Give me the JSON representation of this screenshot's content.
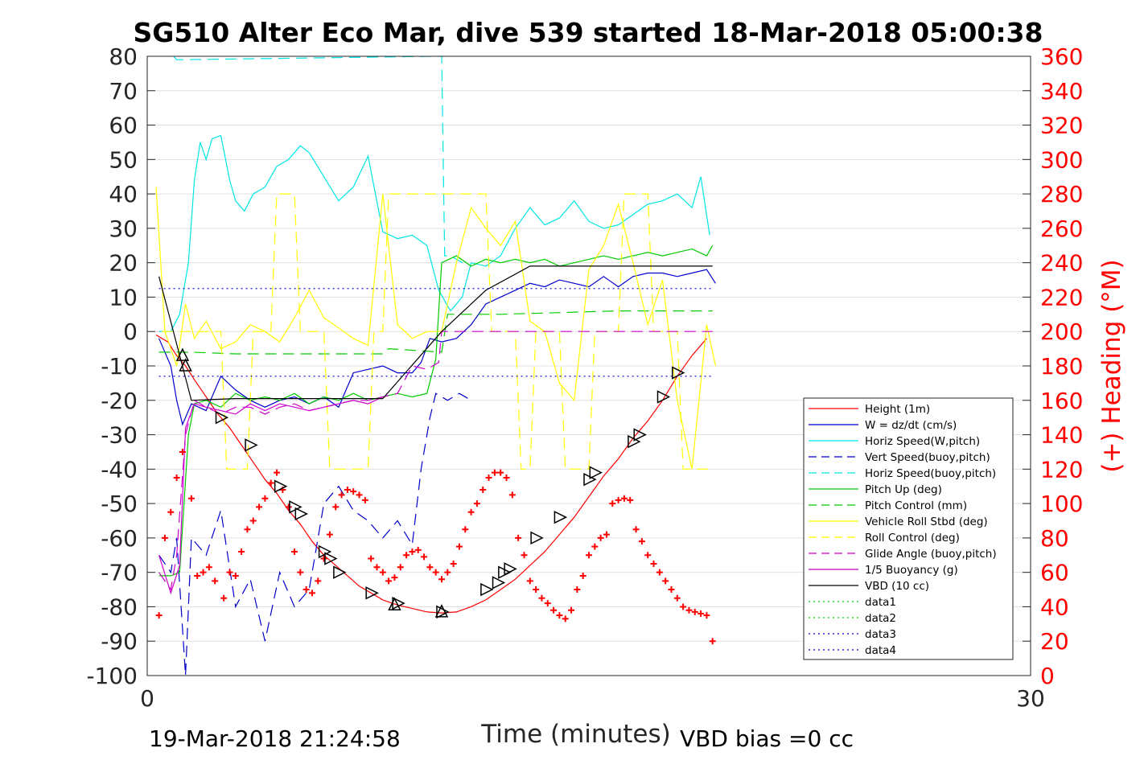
{
  "chart_data": {
    "type": "line",
    "title": "SG510 Alter Eco Mar, dive 539 started 18-Mar-2018 05:00:38",
    "xlabel": "Time (minutes)",
    "ylabel": "",
    "y2label": "(+) Heading (°M)",
    "xlim": [
      0,
      30
    ],
    "ylim": [
      -100,
      80
    ],
    "y2lim": [
      0,
      360
    ],
    "x_ticks": [
      "0",
      "30"
    ],
    "y_ticks": [
      "80",
      "70",
      "60",
      "50",
      "40",
      "30",
      "20",
      "10",
      "0",
      "-10",
      "-20",
      "-30",
      "-40",
      "-50",
      "-60",
      "-70",
      "-80",
      "-90",
      "-100"
    ],
    "y2_ticks": [
      "360",
      "340",
      "320",
      "300",
      "280",
      "260",
      "240",
      "220",
      "200",
      "180",
      "160",
      "140",
      "120",
      "100",
      "80",
      "60",
      "40",
      "20",
      "0"
    ],
    "grid": true,
    "legend_position": "bottom-right",
    "footer_left": "19-Mar-2018 21:24:58",
    "footer_right": "VBD bias =0 cc",
    "series": [
      {
        "name": "Height (1m)",
        "color": "#ff0000",
        "style": "solid",
        "axis": "left",
        "x": [
          0.3,
          0.7,
          1.0,
          1.3,
          1.6,
          2.0,
          2.4,
          2.8,
          3.2,
          3.6,
          4.0,
          4.4,
          4.8,
          5.2,
          5.6,
          6.0,
          6.4,
          6.8,
          7.2,
          7.6,
          8.0,
          8.5,
          9.0,
          9.5,
          10.0,
          10.5,
          11.0,
          11.5,
          12.0,
          12.5,
          13.0,
          13.5,
          14.0,
          14.5,
          15.0,
          15.5,
          16.0,
          16.5,
          17.0,
          17.5,
          18.0,
          18.5,
          19.0
        ],
        "y": [
          -1,
          -3,
          -7,
          -10,
          -14,
          -19,
          -24,
          -28,
          -33,
          -38,
          -43,
          -47,
          -52,
          -56,
          -61,
          -65,
          -68,
          -71,
          -74,
          -76,
          -78,
          -79.5,
          -80.5,
          -81.5,
          -81.8,
          -81.5,
          -80,
          -78,
          -75,
          -72,
          -68,
          -64,
          -59,
          -54,
          -48,
          -42,
          -37,
          -31,
          -26,
          -20,
          -13,
          -7,
          -2
        ]
      },
      {
        "name": "W = dz/dt (cm/s)",
        "color": "#0000cc",
        "style": "solid",
        "axis": "left",
        "x": [
          0.4,
          0.8,
          1.0,
          1.2,
          1.5,
          2.0,
          2.5,
          3.0,
          3.5,
          4.0,
          4.5,
          5.0,
          5.5,
          6.0,
          6.5,
          7.0,
          7.5,
          8.0,
          8.5,
          9.0,
          9.3,
          9.6,
          10.0,
          10.5,
          11.0,
          11.5,
          12.0,
          12.5,
          13.0,
          13.5,
          14.0,
          14.5,
          15.0,
          15.5,
          16.0,
          16.5,
          17.0,
          17.5,
          18.0,
          18.5,
          19.0,
          19.3
        ],
        "y": [
          -2,
          -10,
          -20,
          -27,
          -21,
          -23,
          -13,
          -17,
          -20,
          -22,
          -20,
          -19,
          -21,
          -19,
          -22,
          -12,
          -11,
          -10,
          -12,
          -12,
          -9,
          -2,
          -3,
          -2,
          2,
          8,
          10,
          12,
          14,
          13,
          15,
          14,
          13,
          16,
          13,
          16,
          17,
          17,
          16,
          17,
          18,
          14
        ]
      },
      {
        "name": "Horiz Speed(W,pitch)",
        "color": "#00e5e5",
        "style": "solid",
        "axis": "left",
        "x": [
          0.4,
          0.8,
          1.1,
          1.4,
          1.6,
          1.8,
          2.0,
          2.2,
          2.5,
          2.8,
          3.0,
          3.3,
          3.6,
          4.0,
          4.4,
          4.8,
          5.2,
          5.5,
          6.0,
          6.5,
          7.0,
          7.5,
          8.0,
          8.5,
          9.0,
          9.5,
          9.9,
          10.3,
          10.7,
          11.0,
          11.5,
          12.0,
          12.5,
          13.0,
          13.5,
          14.0,
          14.5,
          15.0,
          15.5,
          16.0,
          16.5,
          17.0,
          17.5,
          18.0,
          18.5,
          18.8,
          19.1
        ],
        "y": [
          0,
          0,
          5,
          20,
          44,
          55,
          50,
          56,
          57,
          44,
          38,
          35,
          40,
          42,
          48,
          50,
          54,
          52,
          45,
          38,
          42,
          51,
          29,
          27,
          28,
          25,
          12,
          6,
          10,
          20,
          19,
          22,
          30,
          36,
          31,
          33,
          38,
          32,
          30,
          31,
          34,
          37,
          38,
          40,
          36,
          45,
          28
        ]
      },
      {
        "name": "Vert Speed(buoy,pitch)",
        "color": "#0000cc",
        "style": "dashed",
        "axis": "left",
        "x": [
          0.4,
          0.8,
          1.0,
          1.3,
          1.5,
          2.0,
          2.5,
          3.0,
          3.5,
          4.0,
          4.5,
          5.0,
          5.5,
          6.0,
          6.5,
          7.0,
          7.5,
          8.0,
          8.5,
          9.0,
          9.3,
          9.6,
          9.8,
          10.2,
          10.6,
          11.0
        ],
        "y": [
          -65,
          -70,
          -60,
          -100,
          -60,
          -65,
          -52,
          -80,
          -72,
          -90,
          -70,
          -80,
          -75,
          -50,
          -45,
          -52,
          -55,
          -60,
          -55,
          -62,
          -40,
          -25,
          -18,
          -20,
          -18,
          -20
        ]
      },
      {
        "name": "Horiz Speed(buoy,pitch)",
        "color": "#00e5e5",
        "style": "dashed",
        "axis": "left",
        "x": [
          0.9,
          1.0,
          9.8,
          10.0,
          10.1,
          10.3,
          10.5,
          10.7,
          10.9
        ],
        "y": [
          80,
          79,
          80,
          80,
          22,
          22,
          21,
          20,
          21
        ]
      },
      {
        "name": "Pitch Up (deg)",
        "color": "#00cc00",
        "style": "solid",
        "axis": "left",
        "x": [
          0.4,
          0.8,
          1.1,
          1.4,
          1.6,
          2.0,
          2.5,
          3.0,
          3.5,
          4.0,
          4.5,
          5.0,
          5.5,
          6.0,
          6.5,
          7.0,
          7.5,
          8.0,
          8.5,
          9.0,
          9.5,
          9.8,
          10.0,
          10.5,
          11.0,
          11.5,
          12.0,
          12.5,
          13.0,
          13.5,
          14.0,
          14.5,
          15.0,
          15.5,
          16.0,
          16.5,
          17.0,
          17.5,
          18.0,
          18.5,
          19.0,
          19.2
        ],
        "y": [
          -71,
          -71,
          -70,
          -30,
          -21,
          -20,
          -22,
          -18,
          -20,
          -19,
          -20,
          -18,
          -21,
          -19,
          -20,
          -18,
          -20,
          -19,
          -18,
          -19,
          -18,
          -8,
          20,
          22,
          19,
          21,
          20,
          21,
          20,
          21,
          19,
          20,
          21,
          22,
          21,
          22,
          23,
          22,
          23,
          24,
          22,
          25
        ]
      },
      {
        "name": "Pitch Control (mm)",
        "color": "#00cc00",
        "style": "dashed",
        "axis": "left",
        "x": [
          0.4,
          1.5,
          3.0,
          5.0,
          7.0,
          8.0,
          8.2,
          10.0,
          10.2,
          12.0,
          14.0,
          16.0,
          18.0,
          19.2
        ],
        "y": [
          -6,
          -6,
          -6.5,
          -6.5,
          -6.5,
          -6.5,
          -5,
          -6,
          5,
          5,
          5.5,
          6,
          6,
          6
        ]
      },
      {
        "name": "Vehicle Roll Stbd (deg)",
        "color": "#ffff00",
        "style": "solid",
        "axis": "left",
        "x": [
          0.3,
          0.6,
          1.0,
          1.3,
          1.6,
          2.0,
          2.5,
          3.0,
          3.5,
          4.0,
          4.5,
          5.0,
          5.5,
          6.0,
          6.5,
          7.0,
          7.5,
          8.0,
          8.5,
          9.0,
          9.5,
          10.0,
          10.5,
          11.0,
          11.5,
          12.0,
          12.5,
          13.0,
          13.5,
          14.0,
          14.5,
          15.0,
          15.5,
          16.0,
          16.5,
          17.0,
          17.5,
          18.0,
          18.5,
          19.0,
          19.3
        ],
        "y": [
          42,
          0,
          -10,
          8,
          -2,
          3,
          -5,
          -3,
          2,
          0,
          -3,
          4,
          12,
          4,
          1,
          -2,
          -4,
          40,
          2,
          -2,
          0,
          0,
          20,
          36,
          30,
          25,
          32,
          3,
          0,
          -15,
          -20,
          18,
          25,
          37,
          20,
          2,
          15,
          -20,
          -40,
          2,
          -10
        ]
      },
      {
        "name": "Roll Control (deg)",
        "color": "#ffff00",
        "style": "dashed",
        "axis": "left",
        "x": [
          0.5,
          1.0,
          1.5,
          2.0,
          2.5,
          2.7,
          3.4,
          3.6,
          4.2,
          4.4,
          5.0,
          5.2,
          6.0,
          6.2,
          7.5,
          7.7,
          8.0,
          8.2,
          11.5,
          11.7,
          12.5,
          12.7,
          13.0,
          13.2,
          14.0,
          14.2,
          15.0,
          15.2,
          16.0,
          16.2,
          17.0,
          17.2,
          18.0,
          18.2,
          19.2
        ],
        "y": [
          0,
          0,
          0,
          0,
          0,
          -40,
          -40,
          0,
          0,
          40,
          40,
          0,
          0,
          -40,
          -40,
          0,
          0,
          40,
          40,
          0,
          0,
          -40,
          -40,
          0,
          0,
          -40,
          -40,
          0,
          0,
          40,
          40,
          0,
          0,
          -40,
          -40
        ]
      },
      {
        "name": "Glide Angle (buoy,pitch)",
        "color": "#cc00cc",
        "style": "dashed",
        "axis": "left",
        "x": [
          0.4,
          0.8,
          1.0,
          1.3,
          1.6,
          2.0,
          2.5,
          3.0,
          3.5,
          4.0,
          4.5,
          5.0,
          5.5,
          6.0,
          6.5,
          7.0,
          7.5,
          8.0,
          8.5,
          9.0,
          9.5,
          9.9,
          10.0,
          12.0,
          14.0,
          16.0,
          18.0,
          19.2
        ],
        "y": [
          -70,
          -75,
          -65,
          -30,
          -20,
          -22,
          -24,
          -22,
          -22,
          -24,
          -22,
          -21,
          -23,
          -22,
          -21,
          -20,
          -20,
          -19,
          -18,
          -10,
          -11,
          -9,
          0,
          0,
          0,
          0,
          0,
          0
        ]
      },
      {
        "name": "1/5 Buoyancy (g)",
        "color": "#cc00cc",
        "style": "solid",
        "axis": "left",
        "x": [
          0.4,
          0.8,
          1.1,
          1.3,
          1.6,
          2.0,
          2.5,
          3.0,
          3.5,
          4.0,
          4.5,
          5.0,
          5.5,
          6.0,
          6.5,
          7.0,
          7.5,
          8.0
        ],
        "y": [
          -65,
          -76,
          -68,
          -28,
          -21,
          -22,
          -23,
          -24,
          -21,
          -23,
          -21,
          -22,
          -23,
          -22,
          -21,
          -20,
          -21,
          -19
        ]
      },
      {
        "name": "VBD (10 cc)",
        "color": "#000000",
        "style": "solid",
        "axis": "left",
        "x": [
          0.4,
          1.5,
          3.0,
          5.0,
          7.0,
          8.0,
          10.0,
          11.5,
          13.0,
          15.0,
          17.0,
          19.2
        ],
        "y": [
          16,
          -20,
          -19.5,
          -19.5,
          -19.5,
          -19.5,
          0,
          12,
          19,
          19,
          19,
          19
        ]
      },
      {
        "name": "data1",
        "color": "#00cc00",
        "style": "dotted",
        "axis": "left",
        "x": [],
        "y": []
      },
      {
        "name": "data2",
        "color": "#00cc00",
        "style": "dotted",
        "axis": "left",
        "x": [],
        "y": []
      },
      {
        "name": "data3",
        "color": "#0000cc",
        "style": "dotted",
        "axis": "left",
        "x": [
          0.4,
          19.2
        ],
        "y": [
          12.5,
          12.5
        ]
      },
      {
        "name": "data4",
        "color": "#0000cc",
        "style": "dotted",
        "axis": "left",
        "x": [
          0.4,
          19.2
        ],
        "y": [
          -13,
          -13
        ]
      }
    ],
    "heading_markers": {
      "color": "#ff0000",
      "marker": "+",
      "axis": "right",
      "x": [
        0.4,
        0.6,
        0.8,
        1.0,
        1.2,
        1.5,
        1.7,
        1.9,
        2.1,
        2.3,
        2.6,
        2.8,
        3.0,
        3.2,
        3.4,
        3.6,
        3.8,
        4.0,
        4.2,
        4.4,
        4.6,
        4.8,
        5.0,
        5.2,
        5.4,
        5.6,
        5.8,
        6.0,
        6.2,
        6.4,
        6.6,
        6.8,
        7.0,
        7.2,
        7.4,
        7.6,
        7.8,
        8.0,
        8.2,
        8.4,
        8.6,
        8.8,
        9.0,
        9.2,
        9.4,
        9.6,
        9.8,
        10.0,
        10.2,
        10.4,
        10.6,
        10.8,
        11.0,
        11.2,
        11.4,
        11.6,
        11.8,
        12.0,
        12.2,
        12.4,
        12.6,
        12.8,
        13.0,
        13.2,
        13.4,
        13.6,
        13.8,
        14.0,
        14.2,
        14.4,
        14.6,
        14.8,
        15.0,
        15.2,
        15.4,
        15.6,
        15.8,
        16.0,
        16.2,
        16.4,
        16.6,
        16.8,
        17.0,
        17.2,
        17.4,
        17.6,
        17.8,
        18.0,
        18.2,
        18.4,
        18.6,
        18.8,
        19.0,
        19.2
      ],
      "y": [
        35,
        80,
        95,
        115,
        130,
        103,
        58,
        60,
        63,
        55,
        45,
        60,
        58,
        72,
        85,
        90,
        98,
        103,
        112,
        118,
        108,
        98,
        72,
        60,
        50,
        48,
        55,
        68,
        82,
        98,
        105,
        108,
        107,
        105,
        102,
        68,
        63,
        60,
        55,
        57,
        63,
        70,
        72,
        73,
        69,
        63,
        60,
        56,
        60,
        65,
        75,
        85,
        95,
        100,
        108,
        115,
        118,
        118,
        115,
        105,
        80,
        70,
        55,
        50,
        45,
        42,
        38,
        35,
        33,
        38,
        50,
        58,
        70,
        75,
        80,
        82,
        100,
        102,
        103,
        102,
        85,
        78,
        70,
        65,
        60,
        55,
        50,
        45,
        40,
        38,
        37,
        36,
        35,
        20
      ]
    },
    "triangle_markers": {
      "color": "#000000",
      "marker": "triangle",
      "axis": "left",
      "up_x": [
        1.2,
        1.3,
        8.4,
        10.0
      ],
      "up_y": [
        -7,
        -10,
        -79.5,
        -81.5
      ],
      "right_x": [
        2.5,
        3.5,
        4.5,
        5.0,
        5.2,
        6.0,
        6.2,
        6.5,
        7.6,
        8.5,
        10.0,
        11.5,
        11.9,
        12.1,
        12.3,
        13.2,
        14.0,
        15.0,
        15.2,
        16.5,
        16.7,
        17.5,
        18.0
      ],
      "right_y": [
        -25,
        -33,
        -45,
        -51,
        -53,
        -64,
        -66,
        -70,
        -76,
        -79,
        -81.5,
        -75,
        -73,
        -70,
        -69,
        -60,
        -54,
        -43,
        -41,
        -32,
        -30,
        -19,
        -12
      ]
    }
  }
}
